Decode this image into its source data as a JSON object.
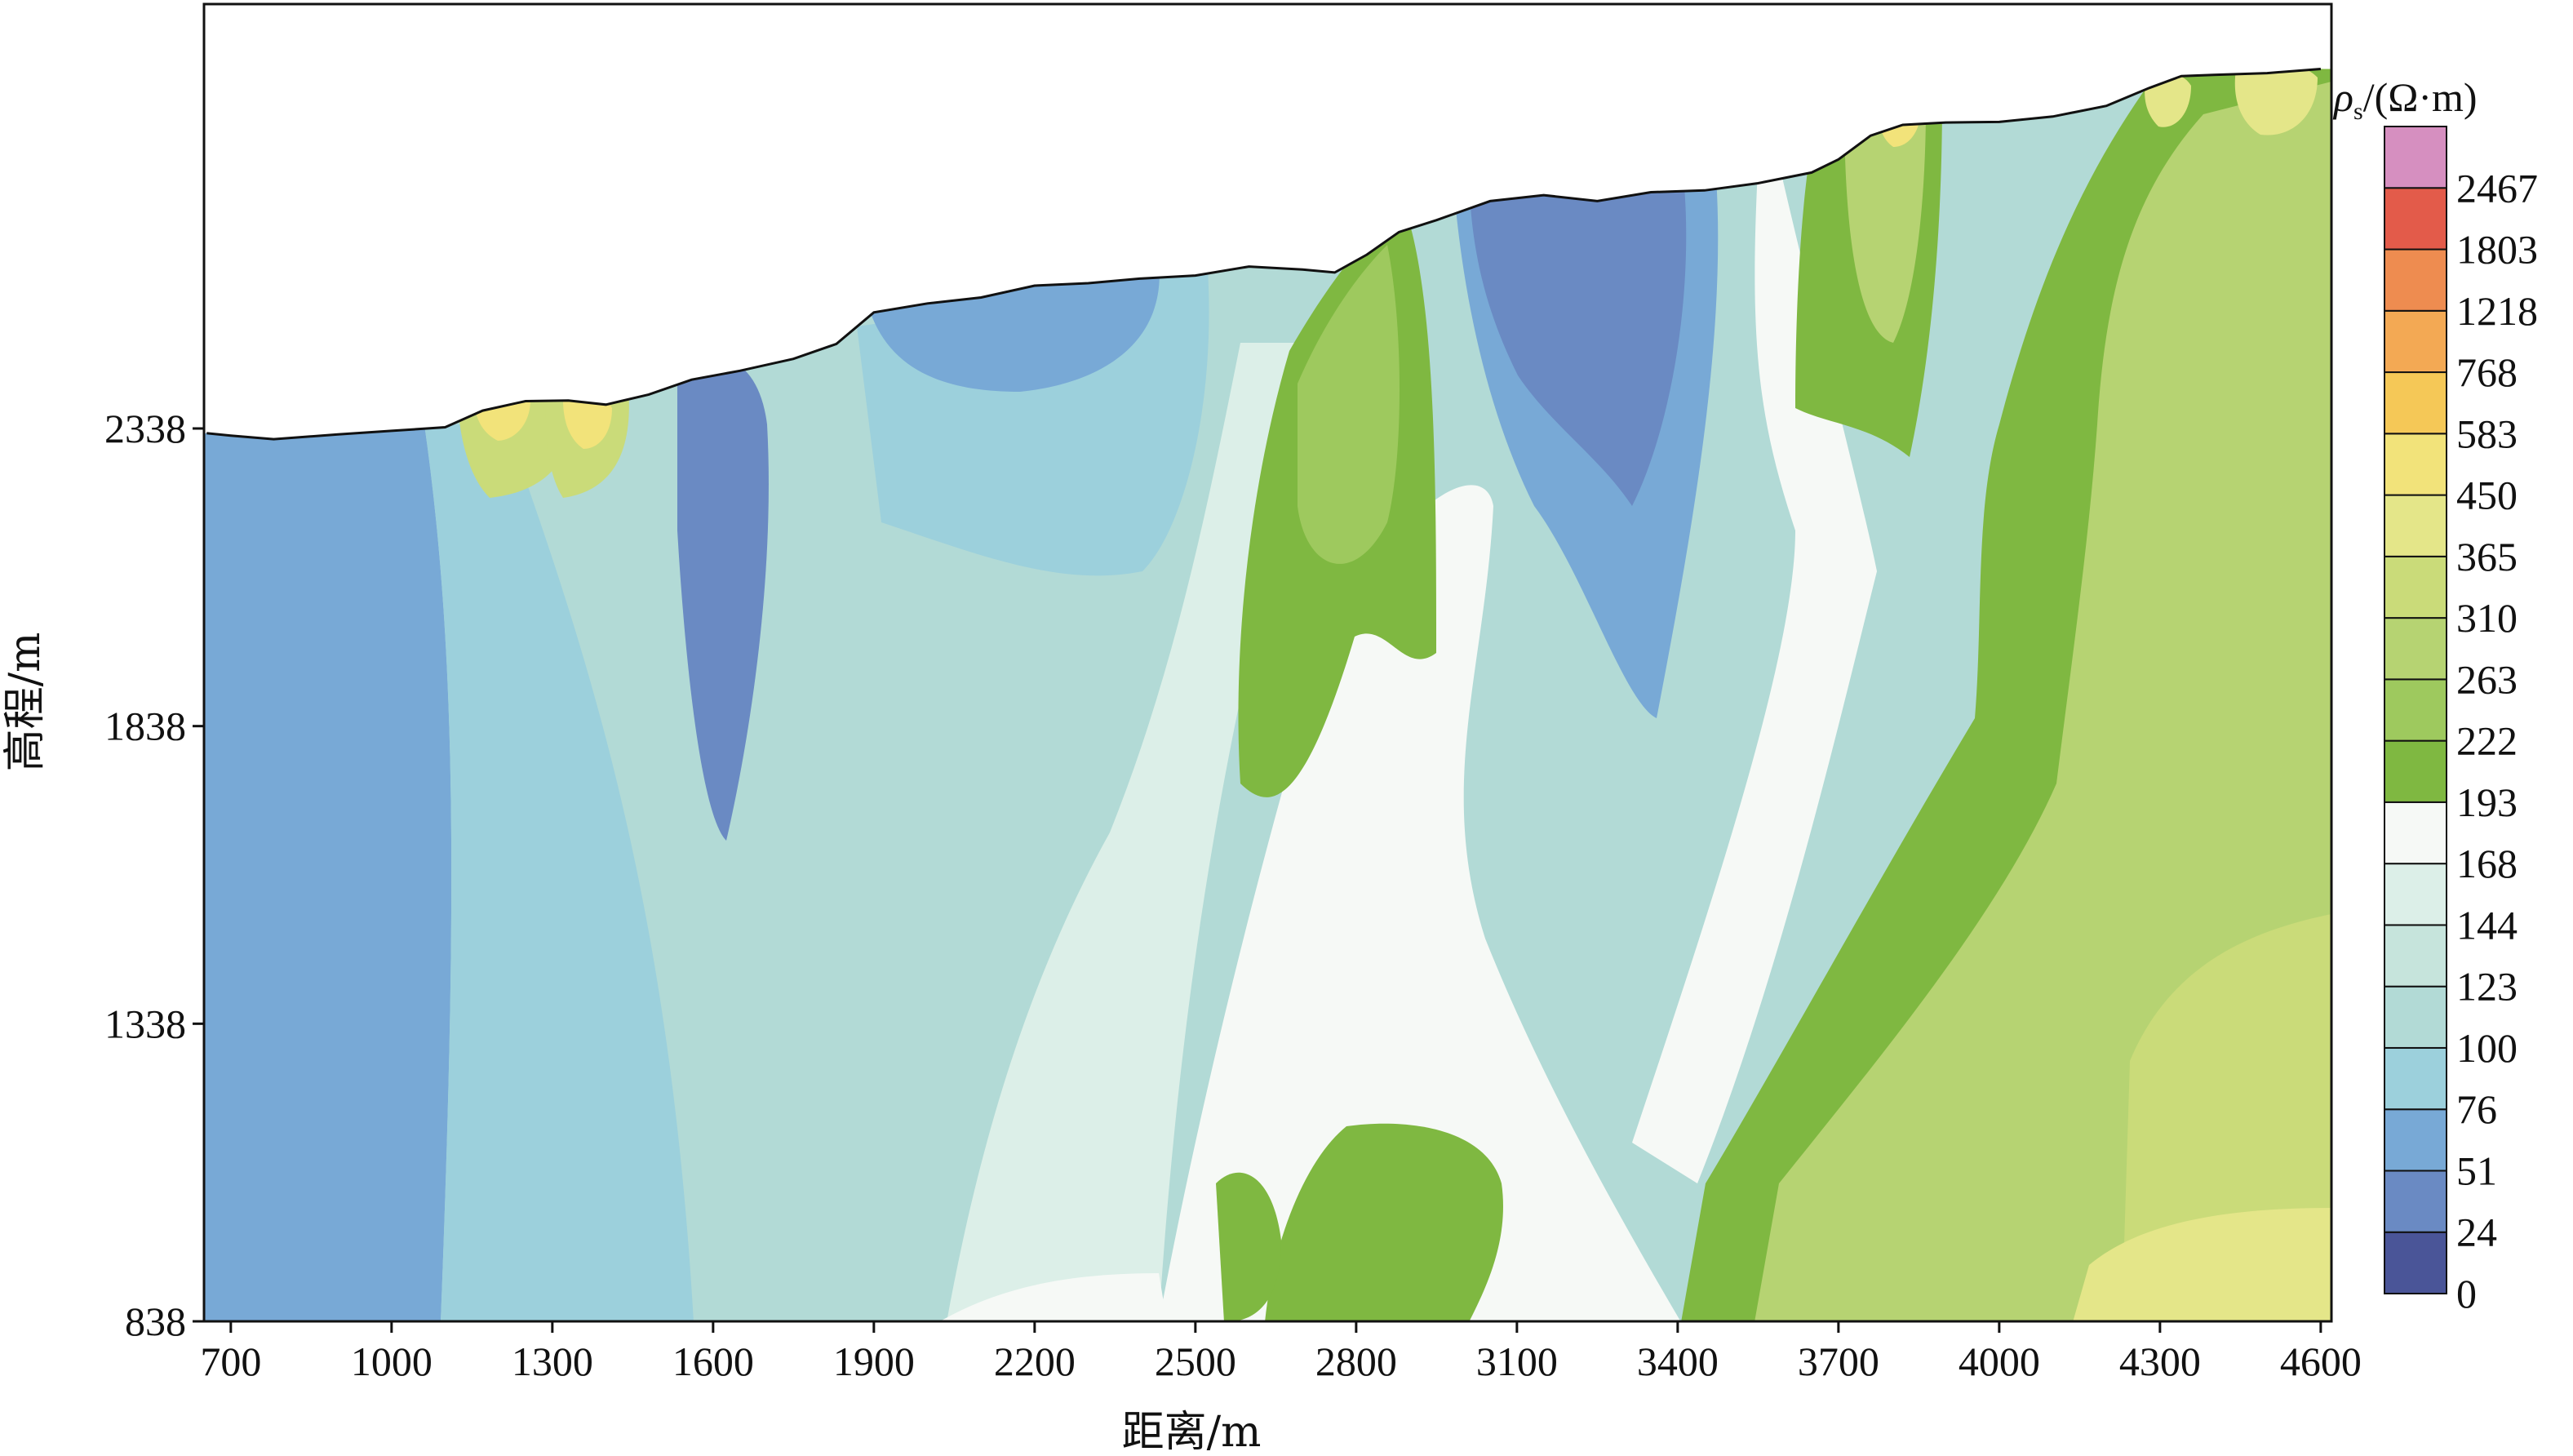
{
  "chart_data": {
    "type": "heatmap",
    "title": "",
    "xlabel": "距离/m",
    "ylabel": "高程/m",
    "x_ticks": [
      700,
      1000,
      1300,
      1600,
      1900,
      2200,
      2500,
      2800,
      3100,
      3400,
      3700,
      4000,
      4300,
      4600
    ],
    "y_ticks": [
      838,
      1338,
      1838,
      2338
    ],
    "xlim": [
      650,
      4620
    ],
    "ylim": [
      838,
      2338
    ],
    "colorbar": {
      "label_symbol": "ρ",
      "label_sub": "s",
      "label_unit": "/(Ω·m)",
      "levels": [
        0,
        24,
        51,
        76,
        100,
        123,
        144,
        168,
        193,
        222,
        263,
        310,
        365,
        450,
        583,
        768,
        1218,
        1803,
        2467
      ],
      "colors": [
        "#4a5598",
        "#6a8ac3",
        "#78a9d6",
        "#9cd0dc",
        "#b2dad6",
        "#c6e4dc",
        "#dcefe8",
        "#f6f9f6",
        "#7fb841",
        "#9ec95e",
        "#b6d372",
        "#cadb79",
        "#e4e689",
        "#f2e37a",
        "#f5c857",
        "#f3a954",
        "#ee8c50",
        "#e35b4a",
        "#d68fc0"
      ]
    },
    "topography": [
      [
        655,
        2330
      ],
      [
        700,
        2326
      ],
      [
        780,
        2320
      ],
      [
        900,
        2328
      ],
      [
        1000,
        2334
      ],
      [
        1100,
        2340
      ],
      [
        1170,
        2368
      ],
      [
        1250,
        2384
      ],
      [
        1330,
        2385
      ],
      [
        1400,
        2378
      ],
      [
        1480,
        2395
      ],
      [
        1560,
        2420
      ],
      [
        1650,
        2435
      ],
      [
        1750,
        2455
      ],
      [
        1830,
        2480
      ],
      [
        1900,
        2533
      ],
      [
        2000,
        2548
      ],
      [
        2100,
        2558
      ],
      [
        2200,
        2578
      ],
      [
        2300,
        2582
      ],
      [
        2400,
        2590
      ],
      [
        2500,
        2595
      ],
      [
        2600,
        2610
      ],
      [
        2700,
        2605
      ],
      [
        2760,
        2600
      ],
      [
        2820,
        2630
      ],
      [
        2880,
        2668
      ],
      [
        2950,
        2688
      ],
      [
        3050,
        2720
      ],
      [
        3150,
        2730
      ],
      [
        3250,
        2720
      ],
      [
        3350,
        2735
      ],
      [
        3450,
        2738
      ],
      [
        3550,
        2750
      ],
      [
        3650,
        2768
      ],
      [
        3700,
        2790
      ],
      [
        3760,
        2830
      ],
      [
        3820,
        2848
      ],
      [
        3900,
        2852
      ],
      [
        4000,
        2853
      ],
      [
        4100,
        2862
      ],
      [
        4200,
        2880
      ],
      [
        4280,
        2910
      ],
      [
        4340,
        2930
      ],
      [
        4400,
        2932
      ],
      [
        4500,
        2935
      ],
      [
        4600,
        2942
      ]
    ]
  }
}
